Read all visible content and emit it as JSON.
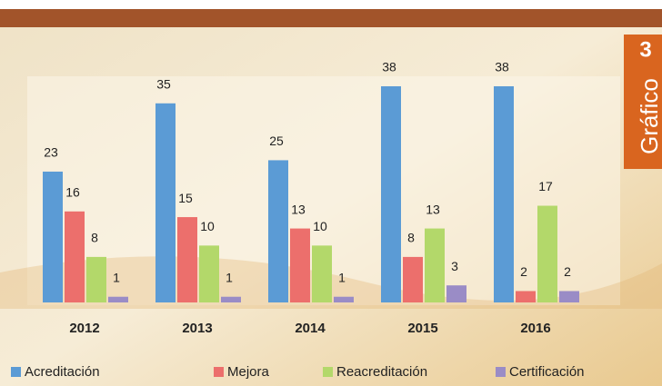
{
  "chart_data": {
    "type": "bar",
    "categories": [
      "2012",
      "2013",
      "2014",
      "2015",
      "2016"
    ],
    "series": [
      {
        "name": "Acreditación",
        "color": "#5b9bd5",
        "values": [
          23,
          35,
          25,
          38,
          38
        ]
      },
      {
        "name": "Mejora",
        "color": "#ec6f6c",
        "values": [
          16,
          15,
          13,
          8,
          2
        ]
      },
      {
        "name": "Reacreditación",
        "color": "#b3d86a",
        "values": [
          8,
          10,
          10,
          13,
          17
        ]
      },
      {
        "name": "Certificación",
        "color": "#9a8cc6",
        "values": [
          1,
          1,
          1,
          3,
          2
        ]
      }
    ],
    "legend": "bottom"
  },
  "badge": {
    "number": "3",
    "label": "Gráfico"
  }
}
